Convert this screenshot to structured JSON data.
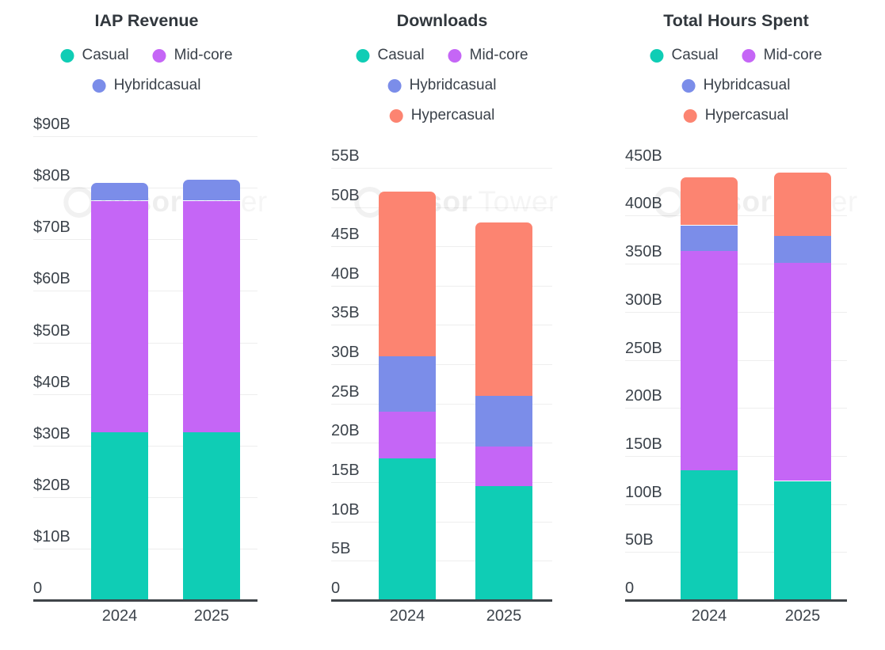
{
  "page": {
    "background": "#ffffff"
  },
  "palette": {
    "casual": "#0FCDB5",
    "midcore": "#C566F6",
    "hybridcasual": "#7B8DE9",
    "hypercasual": "#FC8471"
  },
  "watermark": {
    "logo": "sensor-tower-circle-logo",
    "bold_text": "ensor",
    "light_text": "Tower"
  },
  "chart_data": [
    {
      "type": "bar",
      "stacked": true,
      "title": "IAP Revenue",
      "unit": "$B",
      "grid": true,
      "legend_position": "top",
      "categories": [
        "2024",
        "2025"
      ],
      "series": [
        {
          "name": "Casual",
          "color": "casual",
          "values": [
            32.5,
            32.5
          ]
        },
        {
          "name": "Mid-core",
          "color": "midcore",
          "values": [
            45,
            45
          ]
        },
        {
          "name": "Hybridcasual",
          "color": "hybridcasual",
          "values": [
            3.5,
            4
          ]
        }
      ],
      "legend": [
        {
          "label": "Casual",
          "color": "casual"
        },
        {
          "label": "Mid-core",
          "color": "midcore"
        },
        {
          "label": "Hybridcasual",
          "color": "hybridcasual"
        }
      ],
      "y_axis": {
        "max": 90,
        "step": 10,
        "ylim": [
          0,
          90
        ],
        "ticks": [
          {
            "label": "$90B",
            "value": 90
          },
          {
            "label": "$80B",
            "value": 80
          },
          {
            "label": "$70B",
            "value": 70
          },
          {
            "label": "$60B",
            "value": 60
          },
          {
            "label": "$50B",
            "value": 50
          },
          {
            "label": "$40B",
            "value": 40
          },
          {
            "label": "$30B",
            "value": 30
          },
          {
            "label": "$20B",
            "value": 20
          },
          {
            "label": "$10B",
            "value": 10
          },
          {
            "label": "0",
            "value": 0
          }
        ]
      }
    },
    {
      "type": "bar",
      "stacked": true,
      "title": "Downloads",
      "unit": "B",
      "grid": true,
      "legend_position": "top",
      "categories": [
        "2024",
        "2025"
      ],
      "series": [
        {
          "name": "Casual",
          "color": "casual",
          "values": [
            18,
            14.5
          ]
        },
        {
          "name": "Mid-core",
          "color": "midcore",
          "values": [
            6,
            5
          ]
        },
        {
          "name": "Hybridcasual",
          "color": "hybridcasual",
          "values": [
            7,
            6.5
          ]
        },
        {
          "name": "Hypercasual",
          "color": "hypercasual",
          "values": [
            21,
            22
          ]
        }
      ],
      "legend": [
        {
          "label": "Casual",
          "color": "casual"
        },
        {
          "label": "Mid-core",
          "color": "midcore"
        },
        {
          "label": "Hybridcasual",
          "color": "hybridcasual"
        },
        {
          "label": "Hypercasual",
          "color": "hypercasual"
        }
      ],
      "y_axis": {
        "max": 55,
        "step": 5,
        "ylim": [
          0,
          55
        ],
        "ticks": [
          {
            "label": "55B",
            "value": 55
          },
          {
            "label": "50B",
            "value": 50
          },
          {
            "label": "45B",
            "value": 45
          },
          {
            "label": "40B",
            "value": 40
          },
          {
            "label": "35B",
            "value": 35
          },
          {
            "label": "30B",
            "value": 30
          },
          {
            "label": "25B",
            "value": 25
          },
          {
            "label": "20B",
            "value": 20
          },
          {
            "label": "15B",
            "value": 15
          },
          {
            "label": "10B",
            "value": 10
          },
          {
            "label": "5B",
            "value": 5
          },
          {
            "label": "0",
            "value": 0
          }
        ]
      }
    },
    {
      "type": "bar",
      "stacked": true,
      "title": "Total Hours Spent",
      "unit": "B",
      "grid": true,
      "legend_position": "top",
      "categories": [
        "2024",
        "2025"
      ],
      "series": [
        {
          "name": "Casual",
          "color": "casual",
          "values": [
            135,
            124
          ]
        },
        {
          "name": "Mid-core",
          "color": "midcore",
          "values": [
            228,
            227
          ]
        },
        {
          "name": "Hybridcasual",
          "color": "hybridcasual",
          "values": [
            27,
            28
          ]
        },
        {
          "name": "Hypercasual",
          "color": "hypercasual",
          "values": [
            50,
            66
          ]
        }
      ],
      "legend": [
        {
          "label": "Casual",
          "color": "casual"
        },
        {
          "label": "Mid-core",
          "color": "midcore"
        },
        {
          "label": "Hybridcasual",
          "color": "hybridcasual"
        },
        {
          "label": "Hypercasual",
          "color": "hypercasual"
        }
      ],
      "y_axis": {
        "max": 450,
        "step": 50,
        "ylim": [
          0,
          450
        ],
        "ticks": [
          {
            "label": "450B",
            "value": 450
          },
          {
            "label": "400B",
            "value": 400
          },
          {
            "label": "350B",
            "value": 350
          },
          {
            "label": "300B",
            "value": 300
          },
          {
            "label": "250B",
            "value": 250
          },
          {
            "label": "200B",
            "value": 200
          },
          {
            "label": "150B",
            "value": 150
          },
          {
            "label": "100B",
            "value": 100
          },
          {
            "label": "50B",
            "value": 50
          },
          {
            "label": "0",
            "value": 0
          }
        ]
      }
    }
  ]
}
